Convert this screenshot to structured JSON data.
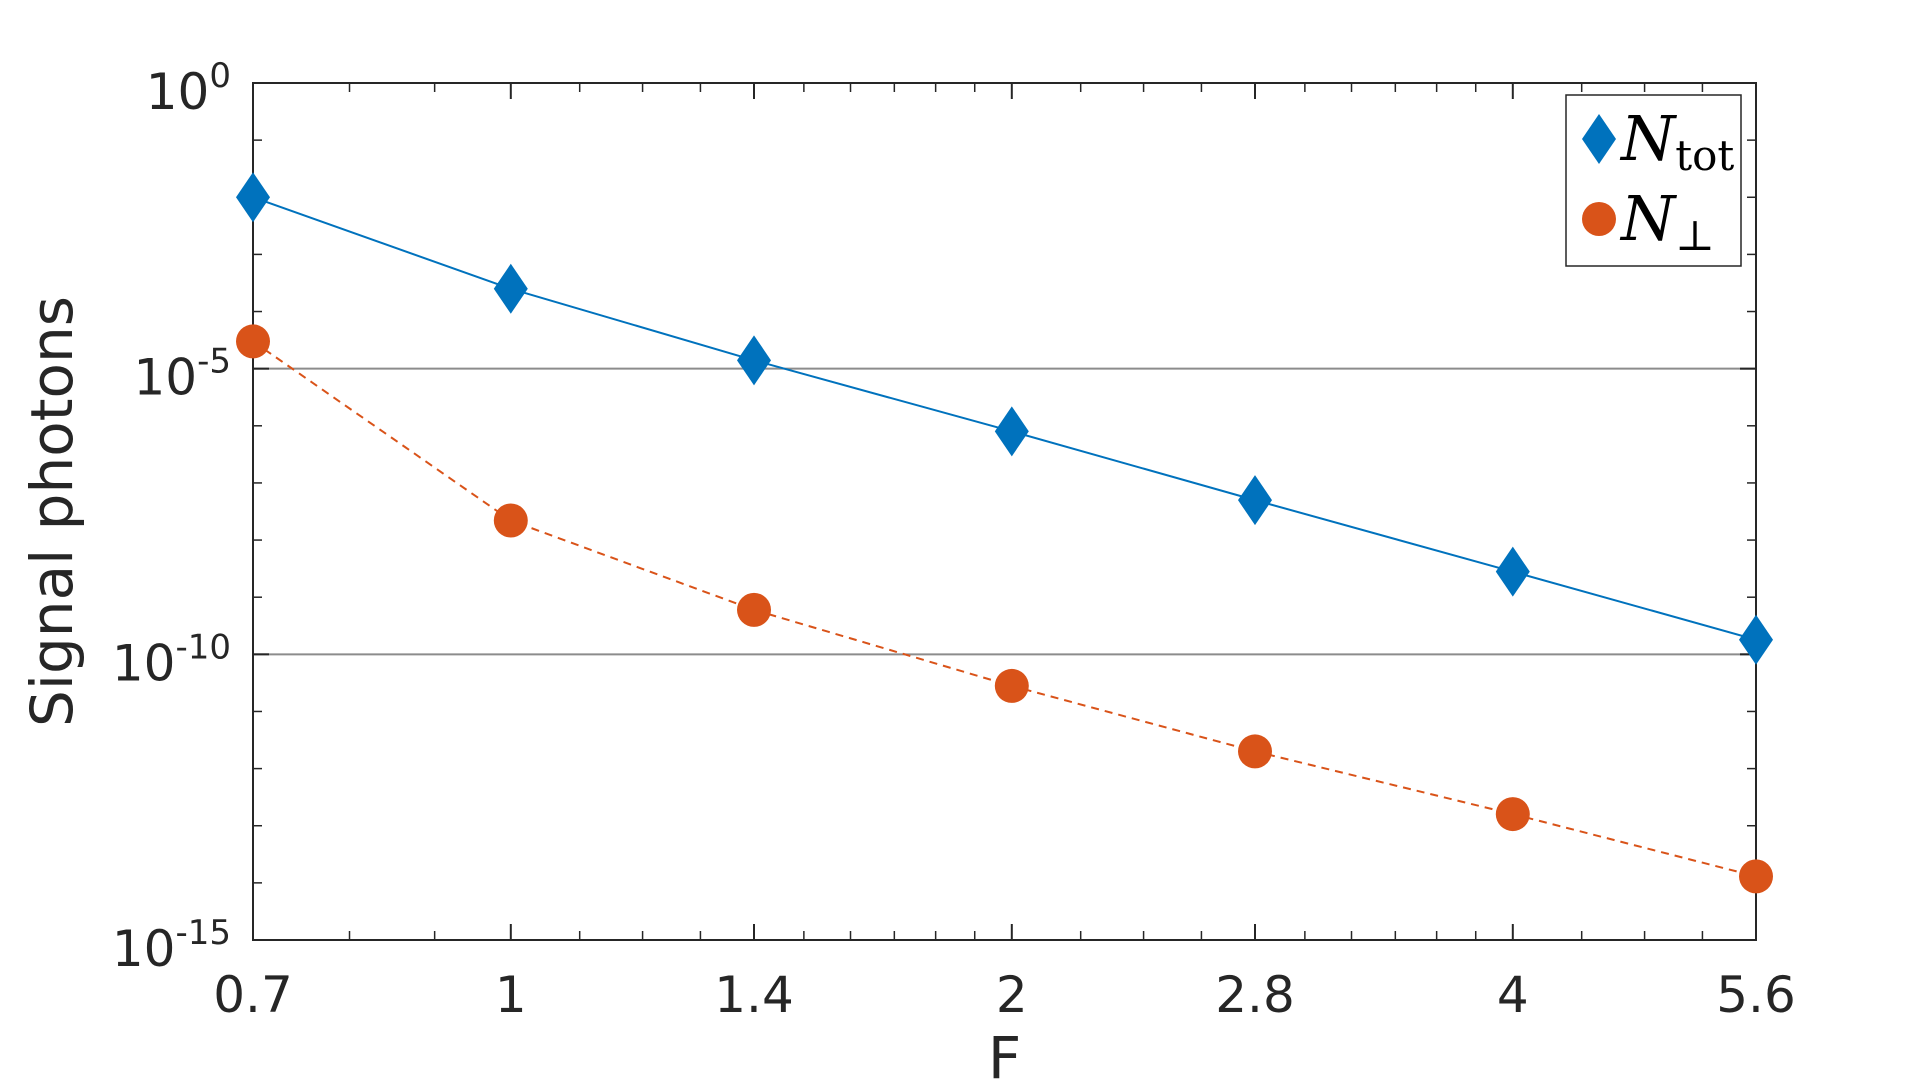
{
  "chart_data": {
    "type": "line",
    "xscale": "log",
    "yscale": "log",
    "xlabel": "F",
    "ylabel": "Signal photons",
    "x": [
      0.7,
      1,
      1.4,
      2,
      2.8,
      4,
      5.6
    ],
    "xticks": [
      "0.7",
      "1",
      "1.4",
      "2",
      "2.8",
      "4",
      "5.6"
    ],
    "ylim": [
      1e-15,
      1
    ],
    "yticks": [
      {
        "base": "10",
        "exp": "0",
        "value": 1
      },
      {
        "base": "10",
        "exp": "-5",
        "value": 1e-05
      },
      {
        "base": "10",
        "exp": "-10",
        "value": 1e-10
      },
      {
        "base": "10",
        "exp": "-15",
        "value": 1e-15
      }
    ],
    "reference_lines": [
      1e-05,
      1e-10
    ],
    "series": [
      {
        "legend_main": "N",
        "legend_sub": "tot",
        "marker": "diamond",
        "line": "solid",
        "color": "#0072BD",
        "values": [
          0.01,
          0.00025,
          1.4e-05,
          8e-07,
          5e-08,
          2.8e-09,
          1.8e-10
        ]
      },
      {
        "legend_main": "N",
        "legend_sub": "⊥",
        "marker": "circle",
        "line": "dashed",
        "color": "#D95319",
        "values": [
          3e-05,
          2.2e-08,
          6e-10,
          2.8e-11,
          2e-12,
          1.6e-13,
          1.3e-14
        ]
      }
    ],
    "legend_position": "top-right",
    "grid": false
  }
}
